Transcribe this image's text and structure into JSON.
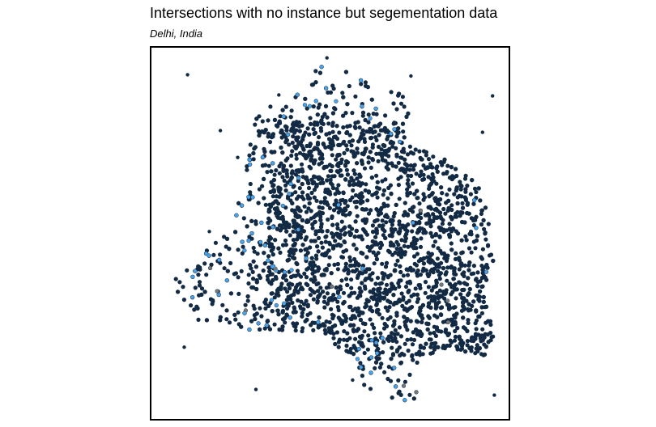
{
  "title": "Intersections with no instance but segementation data",
  "subtitle": "Delhi, India",
  "colors": {
    "background": "#ffffff",
    "frame": "#000000",
    "dense_points": "#132a44",
    "highlight_points": "#4aa3e8",
    "grey_points": "#777777"
  }
}
